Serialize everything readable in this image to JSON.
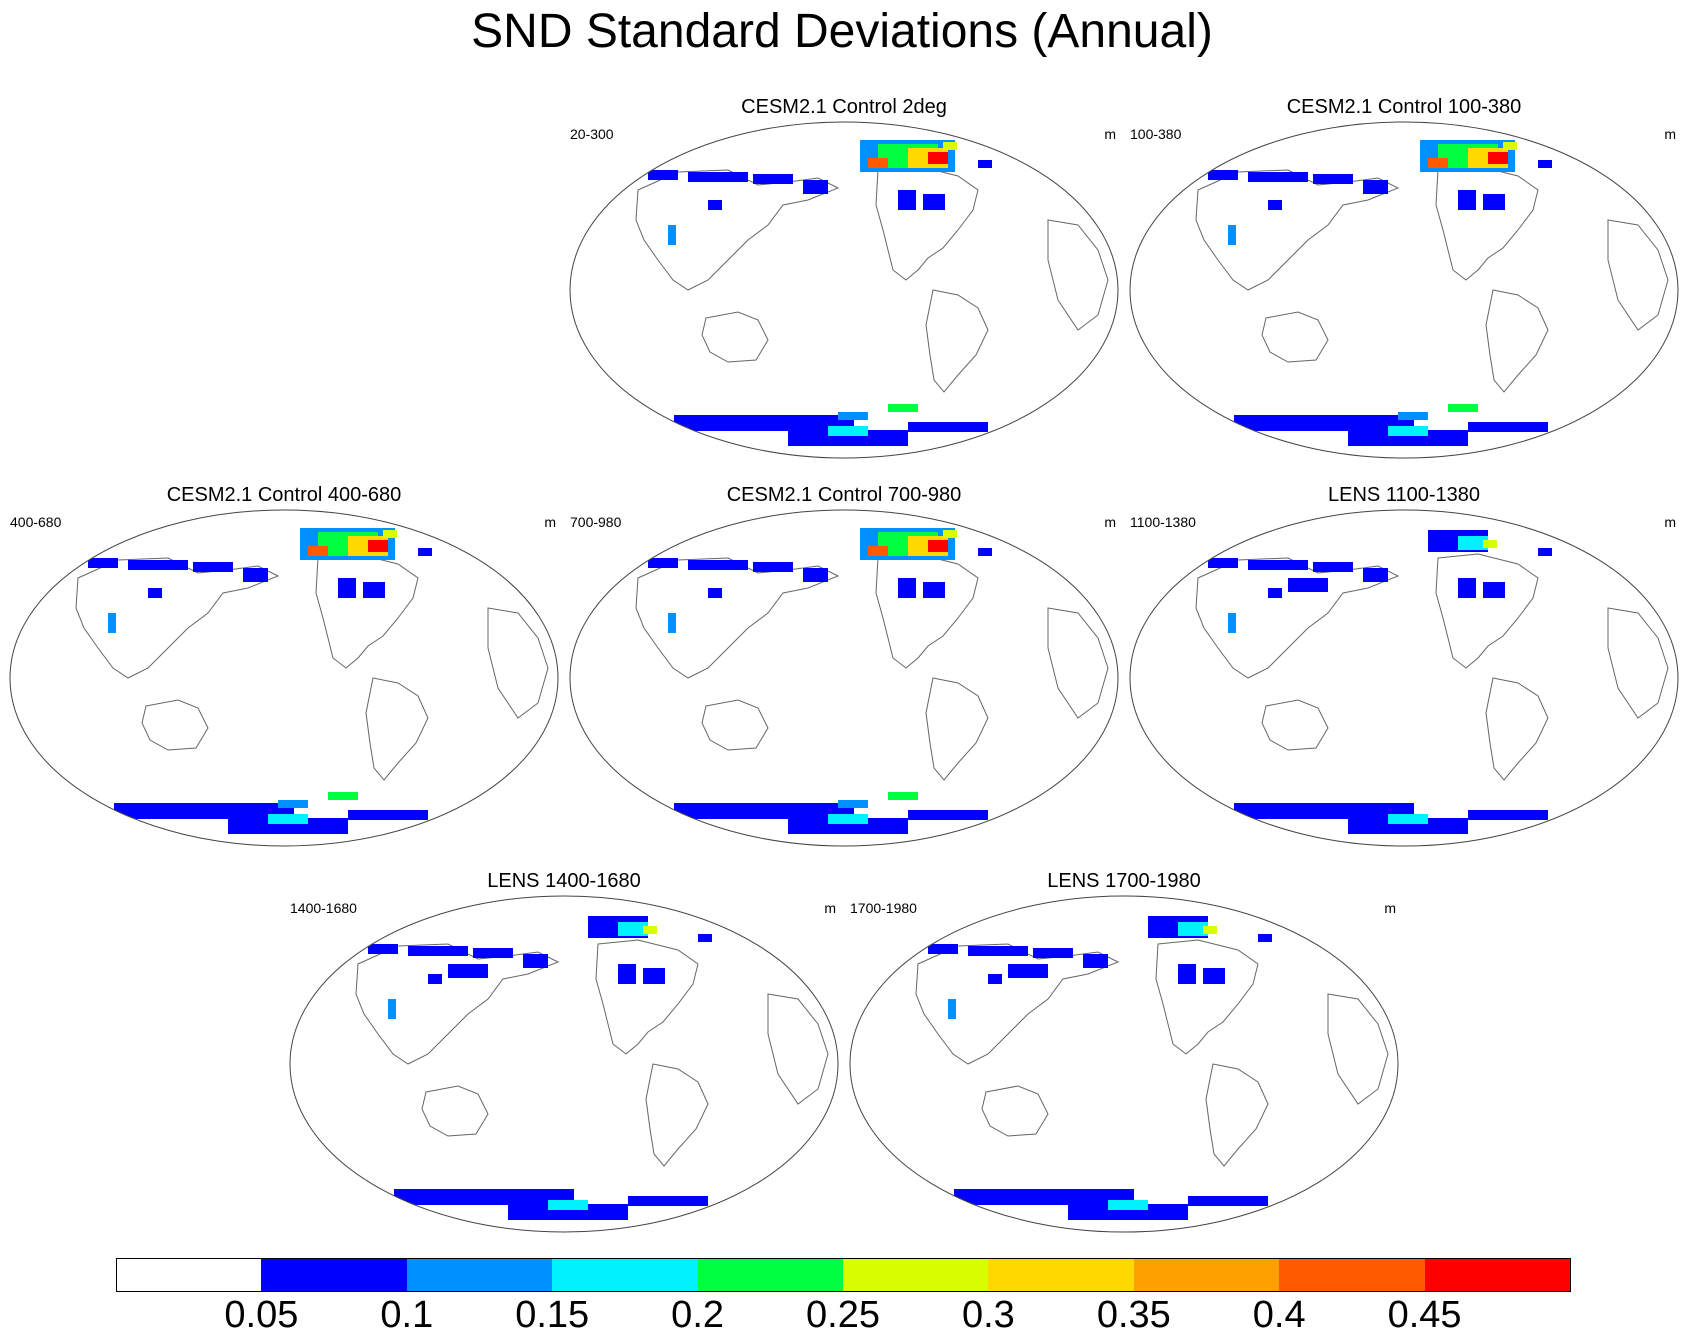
{
  "title": "SND Standard Deviations (Annual)",
  "panels": [
    {
      "title": "CESM2.1 Control 2deg",
      "left_label": "20-300",
      "units": "m",
      "intensity": "high"
    },
    {
      "title": "CESM2.1 Control 100-380",
      "left_label": "100-380",
      "units": "m",
      "intensity": "high"
    },
    {
      "title": "CESM2.1 Control 400-680",
      "left_label": "400-680",
      "units": "m",
      "intensity": "high"
    },
    {
      "title": "CESM2.1 Control 700-980",
      "left_label": "700-980",
      "units": "m",
      "intensity": "high"
    },
    {
      "title": "LENS 1100-1380",
      "left_label": "1100-1380",
      "units": "m",
      "intensity": "low"
    },
    {
      "title": "LENS 1400-1680",
      "left_label": "1400-1680",
      "units": "m",
      "intensity": "low"
    },
    {
      "title": "LENS 1700-1980",
      "left_label": "1700-1980",
      "units": "m",
      "intensity": "low"
    }
  ],
  "colorbar": {
    "colors": [
      "#ffffff",
      "#0000ff",
      "#0090ff",
      "#00f0ff",
      "#00ff40",
      "#d8ff00",
      "#ffd800",
      "#ffa000",
      "#ff5a00",
      "#ff0000"
    ],
    "labels": [
      "0.05",
      "0.1",
      "0.15",
      "0.2",
      "0.25",
      "0.3",
      "0.35",
      "0.4",
      "0.45"
    ]
  }
}
